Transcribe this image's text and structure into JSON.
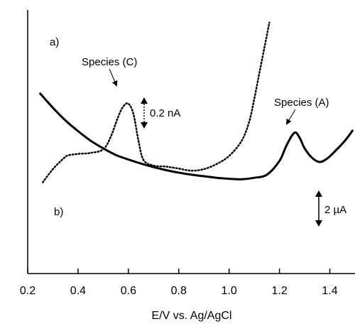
{
  "chart_data": {
    "type": "line",
    "xlabel": "E/V vs. Ag/AgCl",
    "ylabel": "",
    "xlim": [
      0.2,
      1.5
    ],
    "x_ticks": [
      "0.2",
      "0.4",
      "0.6",
      "0.8",
      "1.0",
      "1.2",
      "1.4"
    ],
    "y_axis_values_printed": false,
    "series": [
      {
        "name": "a)",
        "style": "solid",
        "current_scale": "2 µA",
        "x": [
          0.25,
          0.3,
          0.35,
          0.4,
          0.45,
          0.5,
          0.55,
          0.6,
          0.65,
          0.7,
          0.75,
          0.8,
          0.85,
          0.9,
          0.95,
          1.0,
          1.05,
          1.1,
          1.15,
          1.2,
          1.23,
          1.26,
          1.28,
          1.3,
          1.33,
          1.36,
          1.39,
          1.42,
          1.46,
          1.49
        ],
        "y": [
          355,
          327,
          302,
          281,
          262,
          247,
          234,
          225,
          217,
          210,
          204,
          199,
          195,
          192,
          189,
          187,
          186,
          189,
          195,
          222,
          255,
          278,
          268,
          247,
          228,
          220,
          227,
          241,
          262,
          282
        ]
      },
      {
        "name": "b)",
        "style": "dotted",
        "current_scale": "0.2 nA",
        "x": [
          0.26,
          0.3,
          0.34,
          0.36,
          0.4,
          0.45,
          0.5,
          0.53,
          0.56,
          0.58,
          0.6,
          0.62,
          0.64,
          0.66,
          0.7,
          0.75,
          0.8,
          0.85,
          0.9,
          0.95,
          1.0,
          1.05,
          1.08,
          1.1,
          1.12,
          1.14,
          1.16
        ],
        "y": [
          180,
          206,
          226,
          233,
          236,
          238,
          245,
          270,
          310,
          330,
          335,
          315,
          262,
          224,
          213,
          211,
          207,
          203,
          206,
          216,
          232,
          262,
          300,
          345,
          395,
          445,
          495
        ]
      }
    ],
    "annotations": [
      "Species (C)",
      "Species (A)",
      "a)",
      "b)"
    ],
    "scale_bars": [
      "0.2 nA",
      "2 µA"
    ]
  }
}
